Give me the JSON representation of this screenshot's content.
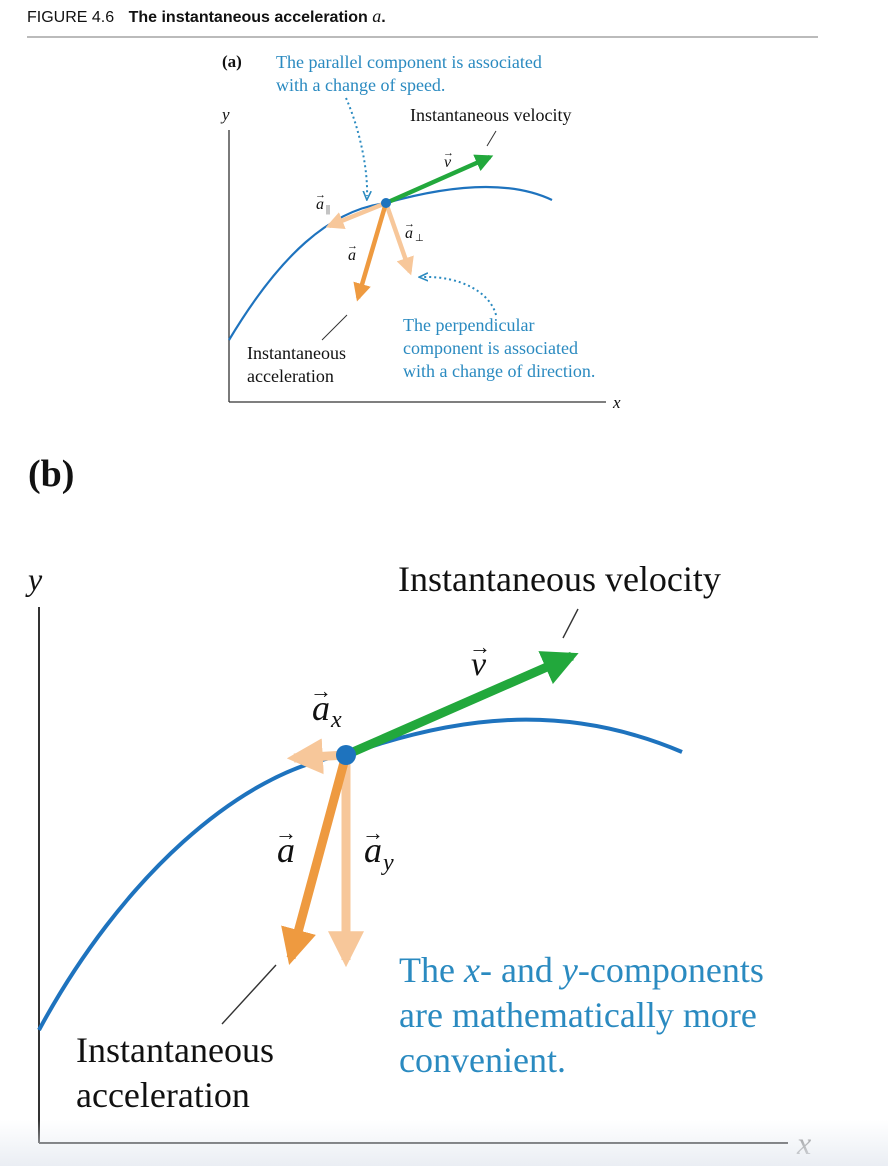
{
  "caption": {
    "figure_number": "FIGURE 4.6",
    "title": "The instantaneous acceleration",
    "title_symbol": "a",
    "title_end": "."
  },
  "colors": {
    "curve": "#1e73be",
    "point": "#1e73be",
    "velocity": "#22a83c",
    "acceleration": "#ee9a40",
    "component": "#f7c79a",
    "note_text": "#2a8ac0",
    "axes": "#333333"
  },
  "panel_a": {
    "label": "(a)",
    "y_axis_label": "y",
    "x_axis_label": "x",
    "note_parallel": [
      "The parallel component is associated",
      "with a change of speed."
    ],
    "note_perpendicular": [
      "The perpendicular",
      "component is associated",
      "with a change of direction."
    ],
    "velocity_caption": "Instantaneous velocity",
    "acceleration_caption": [
      "Instantaneous",
      "acceleration"
    ],
    "v_label": "v",
    "a_label": "a",
    "a_parallel_label": "a",
    "a_parallel_subscript": "||",
    "a_perp_label": "a",
    "a_perp_subscript": "⊥"
  },
  "panel_b": {
    "label": "(b)",
    "y_axis_label": "y",
    "x_axis_label": "x",
    "velocity_caption": "Instantaneous velocity",
    "acceleration_caption": [
      "Instantaneous",
      "acceleration"
    ],
    "note": [
      [
        {
          "t": "The "
        },
        {
          "t": "x",
          "i": true
        },
        {
          "t": "- and "
        },
        {
          "t": "y",
          "i": true
        },
        {
          "t": "-components"
        }
      ],
      [
        {
          "t": "are mathematically more"
        }
      ],
      [
        {
          "t": "convenient."
        }
      ]
    ],
    "v_label": "v",
    "a_label": "a",
    "ax_label": "a",
    "ax_subscript": "x",
    "ay_label": "a",
    "ay_subscript": "y"
  }
}
